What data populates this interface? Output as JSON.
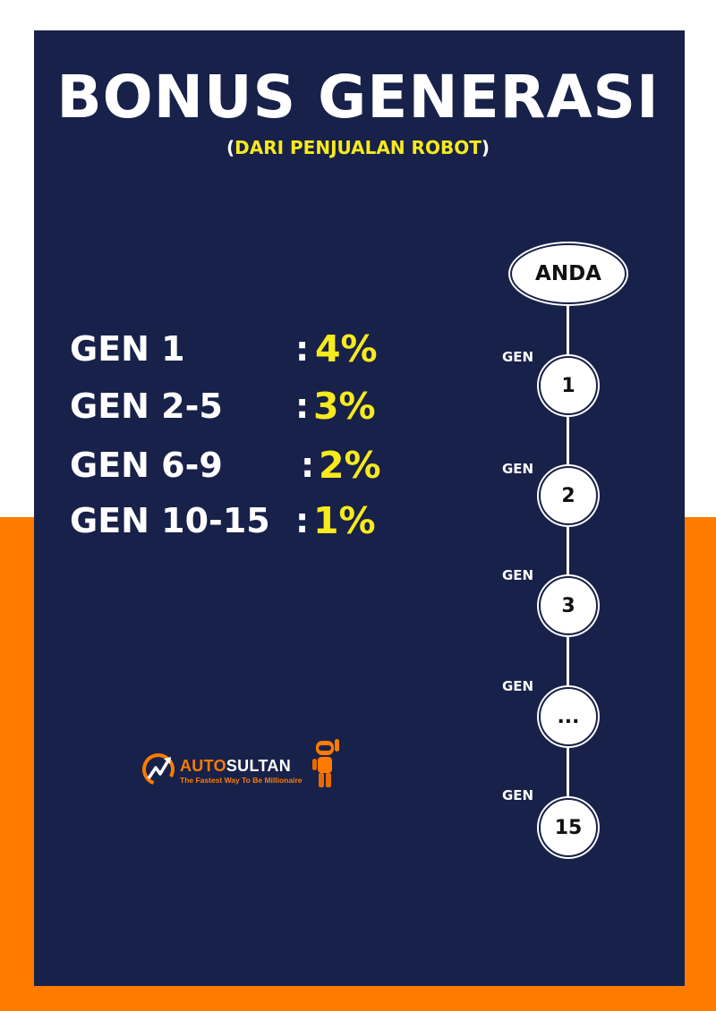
{
  "header": {
    "title": "BONUS GENERASI",
    "subtitle_open": "(",
    "subtitle_text": "DARI PENJUALAN ROBOT",
    "subtitle_close": ")"
  },
  "rates": [
    {
      "label": "GEN 1",
      "colon": ":",
      "value": "4%"
    },
    {
      "label": "GEN 2-5",
      "colon": ":",
      "value": "3%"
    },
    {
      "label": "GEN 6-9",
      "colon": ":",
      "value": "2%"
    },
    {
      "label": "GEN 10-15",
      "colon": ":",
      "value": "1%"
    }
  ],
  "tree": {
    "root": "ANDA",
    "gen_tag": "GEN",
    "nodes": [
      "1",
      "2",
      "3",
      "...",
      "15"
    ]
  },
  "logo": {
    "name_part1": "AUTO",
    "name_part2": "SULTAN",
    "tagline": "The Fastest Way To Be Millionaire"
  },
  "colors": {
    "panel": "#182149",
    "accent_yellow": "#f7ea1d",
    "accent_orange": "#ff7b00",
    "white": "#ffffff"
  }
}
